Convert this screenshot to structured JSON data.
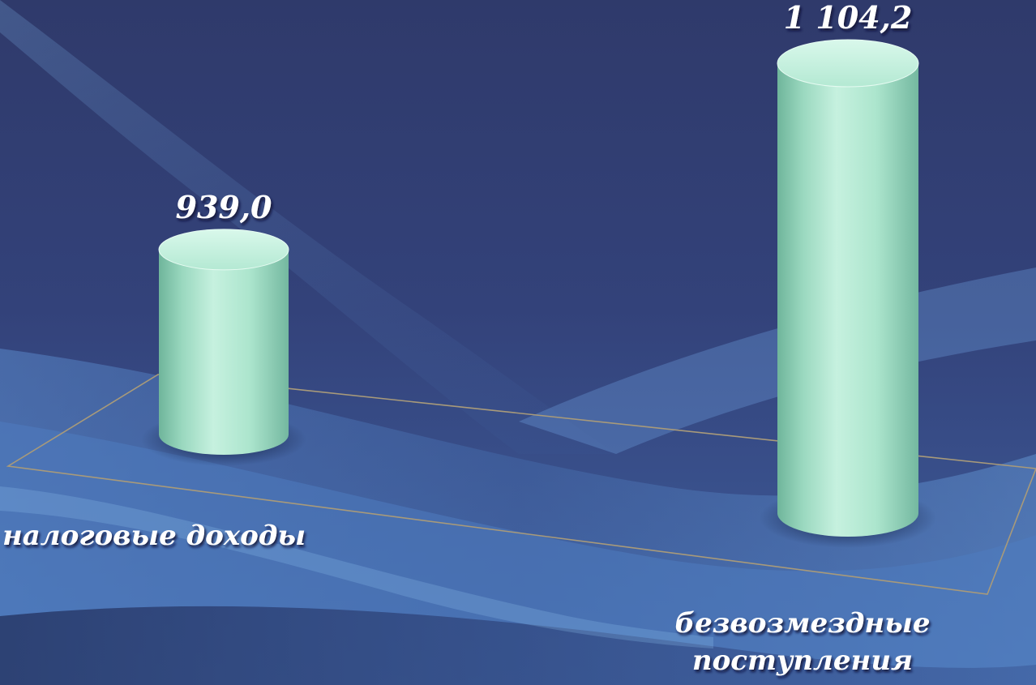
{
  "chart_data": {
    "type": "bar",
    "bar_style": "3d-cylinder",
    "categories": [
      "налоговые доходы",
      "безвозмездные поступления"
    ],
    "category_label_lines": [
      [
        "налоговые доходы"
      ],
      [
        "безвозмездные",
        "поступления"
      ]
    ],
    "values": [
      939.0,
      1104.2
    ],
    "value_labels": [
      "939,0",
      "1 104,2"
    ],
    "title": "",
    "xlabel": "",
    "ylabel": "",
    "grid": false,
    "legend": "none",
    "colors": {
      "bar": "#aee6d0",
      "bar_shade": "#6fb59b",
      "bar_top": "#c9f2e2",
      "floor_outline": "#a89a7a",
      "background_dark": "#2e3a6a",
      "background_light": "#5b8ed0",
      "label_text": "#ffffff"
    }
  }
}
